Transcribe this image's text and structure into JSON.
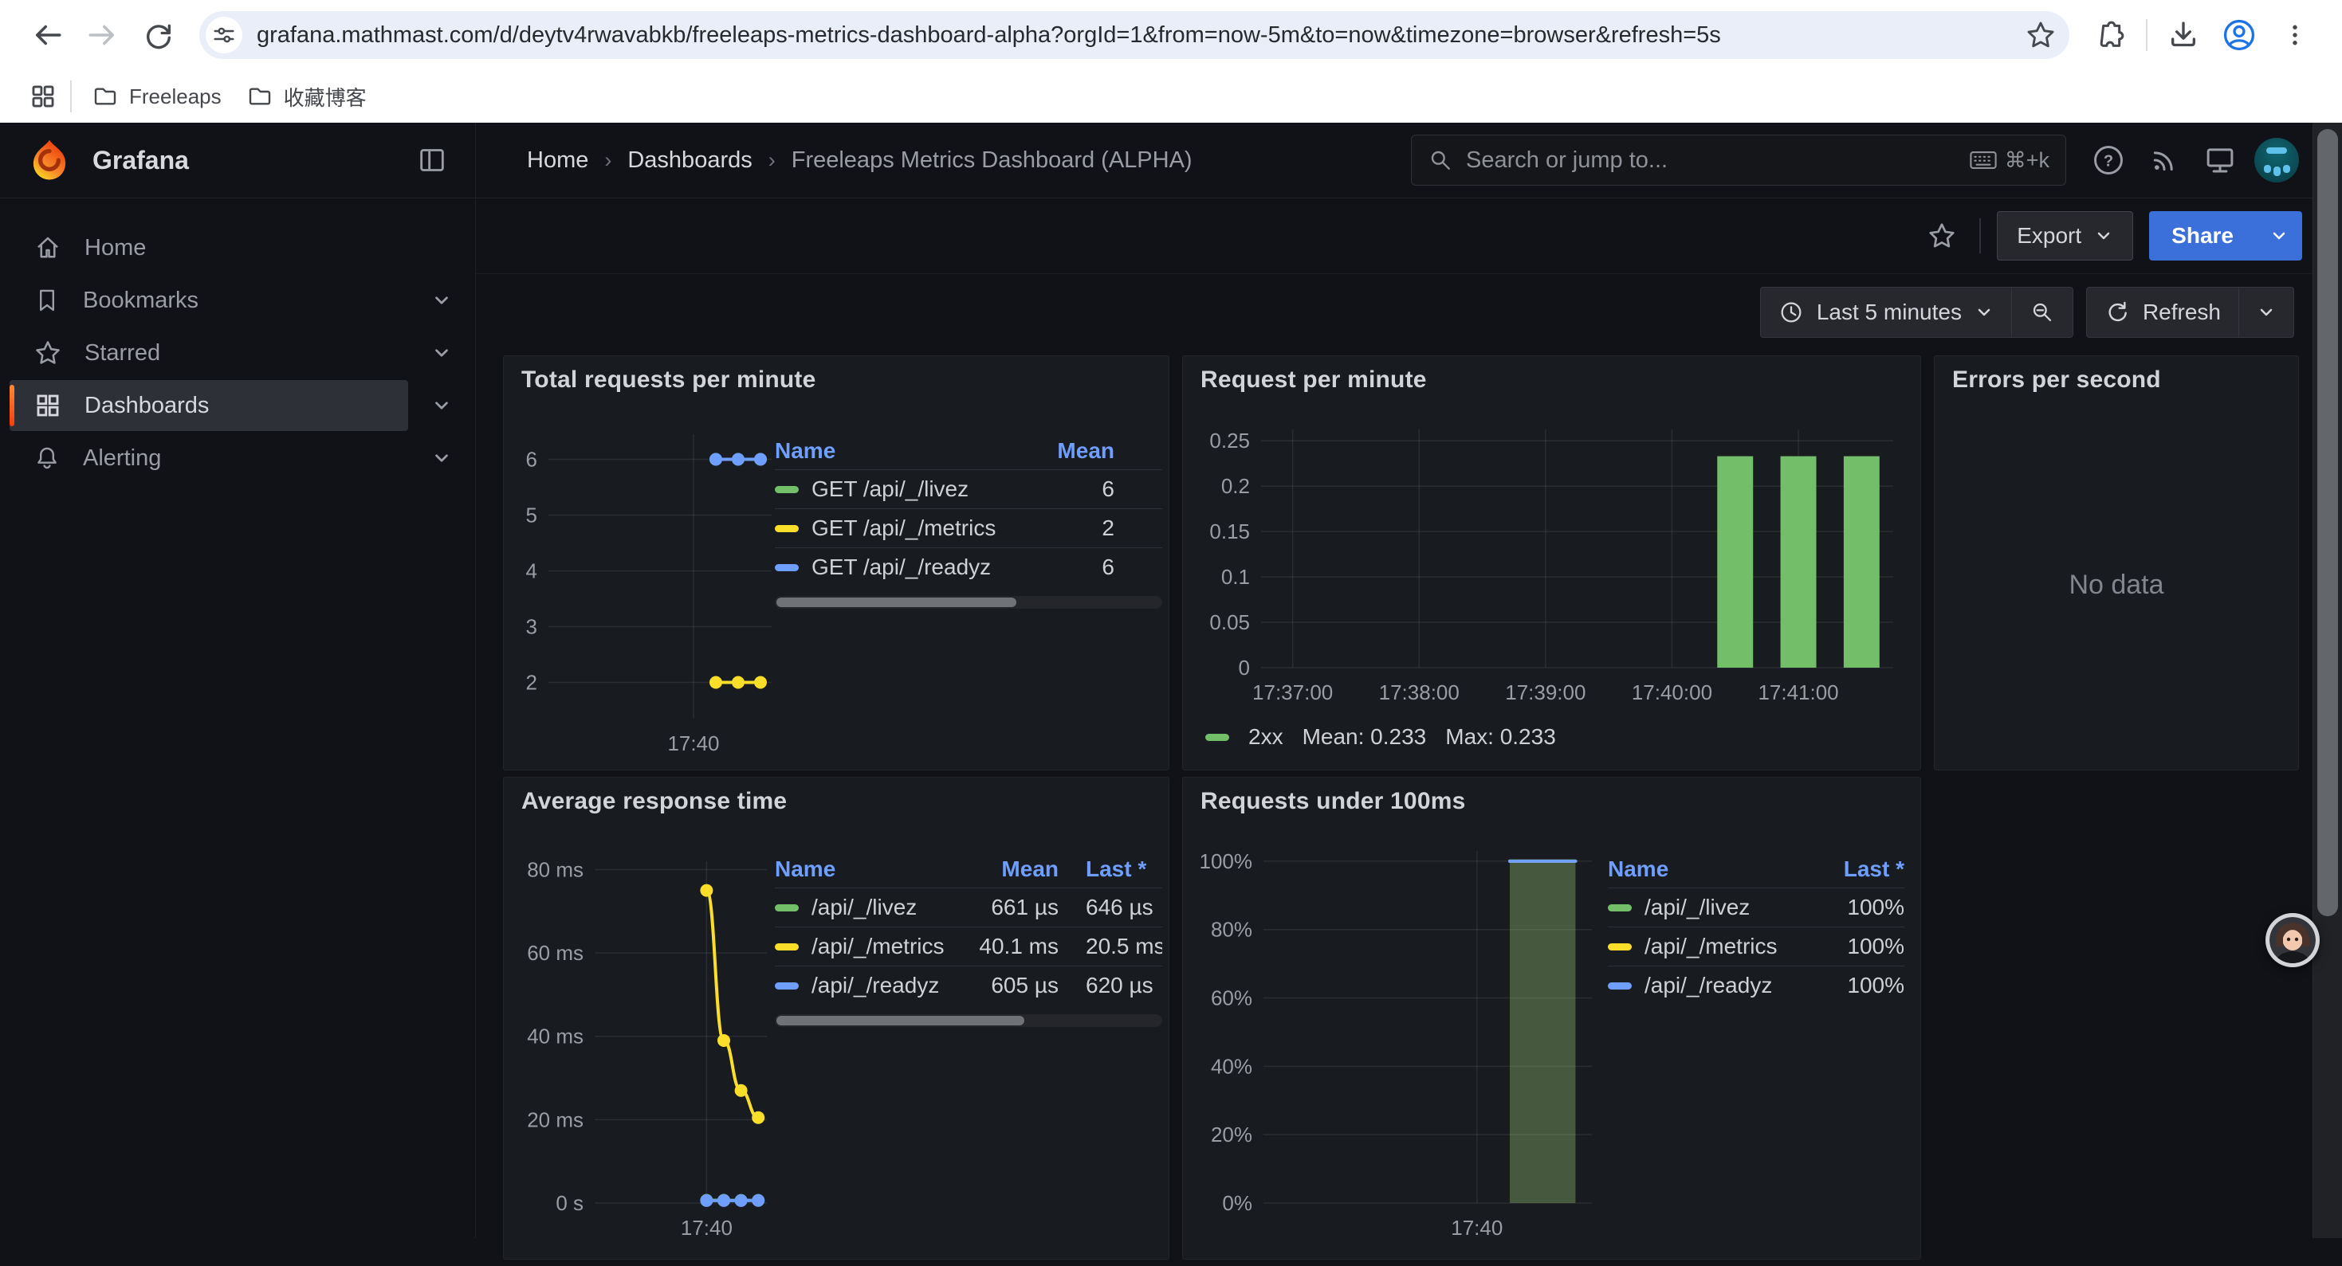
{
  "browser": {
    "url": "grafana.mathmast.com/d/deytv4rwavabkb/freeleaps-metrics-dashboard-alpha?orgId=1&from=now-5m&to=now&timezone=browser&refresh=5s",
    "bookmarks": [
      {
        "label": "Freeleaps"
      },
      {
        "label": "收藏博客"
      }
    ]
  },
  "sidebar": {
    "brand": "Grafana",
    "items": [
      {
        "label": "Home",
        "icon": "home-icon",
        "expandable": false,
        "active": false
      },
      {
        "label": "Bookmarks",
        "icon": "bookmark-icon",
        "expandable": true,
        "active": false
      },
      {
        "label": "Starred",
        "icon": "star-icon",
        "expandable": true,
        "active": false
      },
      {
        "label": "Dashboards",
        "icon": "apps-grid-icon",
        "expandable": true,
        "active": true
      },
      {
        "label": "Alerting",
        "icon": "bell-icon",
        "expandable": true,
        "active": false
      }
    ]
  },
  "header": {
    "breadcrumb": [
      {
        "label": "Home"
      },
      {
        "label": "Dashboards"
      },
      {
        "label": "Freeleaps Metrics Dashboard (ALPHA)"
      }
    ],
    "search_placeholder": "Search or jump to...",
    "search_shortcut": "⌘+k"
  },
  "toolbar": {
    "export_label": "Export",
    "share_label": "Share"
  },
  "timebar": {
    "range_label": "Last 5 minutes",
    "refresh_label": "Refresh"
  },
  "panels": {
    "p1": {
      "title": "Total requests per minute",
      "legend": {
        "columns": [
          "Name",
          "Mean"
        ],
        "rows": [
          {
            "color": "#73BF69",
            "name": "GET /api/_/livez",
            "mean": "6"
          },
          {
            "color": "#FADE2A",
            "name": "GET /api/_/metrics",
            "mean": "2"
          },
          {
            "color": "#6E9FFF",
            "name": "GET /api/_/readyz",
            "mean": "6"
          }
        ]
      }
    },
    "p2": {
      "title": "Request per minute",
      "legend_line": {
        "series": "2xx",
        "mean": "Mean: 0.233",
        "max": "Max: 0.233"
      }
    },
    "p3": {
      "title": "Errors per second",
      "no_data": "No data"
    },
    "p4": {
      "title": "Average response time",
      "legend": {
        "columns": [
          "Name",
          "Mean",
          "Last *"
        ],
        "rows": [
          {
            "color": "#73BF69",
            "name": "/api/_/livez",
            "mean": "661 µs",
            "last": "646 µs"
          },
          {
            "color": "#FADE2A",
            "name": "/api/_/metrics",
            "mean": "40.1 ms",
            "last": "20.5 ms"
          },
          {
            "color": "#6E9FFF",
            "name": "/api/_/readyz",
            "mean": "605 µs",
            "last": "620 µs"
          }
        ]
      }
    },
    "p5": {
      "title": "Requests under 100ms",
      "legend": {
        "columns": [
          "Name",
          "Last *"
        ],
        "rows": [
          {
            "color": "#73BF69",
            "name": "/api/_/livez",
            "last": "100%"
          },
          {
            "color": "#FADE2A",
            "name": "/api/_/metrics",
            "last": "100%"
          },
          {
            "color": "#6E9FFF",
            "name": "/api/_/readyz",
            "last": "100%"
          }
        ]
      }
    }
  },
  "chart_data": [
    {
      "id": "total-requests-per-minute",
      "type": "line",
      "title": "Total requests per minute",
      "x_range": [
        "17:36:45",
        "17:41:45"
      ],
      "y_range": [
        1.35,
        6.45
      ],
      "x_ticks": [
        "17:40:00"
      ],
      "x_tick_labels": [
        "17:40"
      ],
      "y_ticks": [
        2,
        3,
        4,
        5,
        6
      ],
      "y_tick_labels": [
        "2",
        "3",
        "4",
        "5",
        "6"
      ],
      "grid": true,
      "smooth": false,
      "show_points": true,
      "legend_position": "right-table",
      "layout": {
        "margin": {
          "l": 46,
          "r": 6,
          "t": 12,
          "b": 56
        }
      },
      "series": [
        {
          "name": "GET /api/_/livez",
          "color": "#73BF69",
          "mean": 6,
          "points": [
            [
              "17:40:30",
              6
            ],
            [
              "17:41:00",
              6
            ],
            [
              "17:41:30",
              6
            ]
          ]
        },
        {
          "name": "GET /api/_/metrics",
          "color": "#FADE2A",
          "mean": 2,
          "points": [
            [
              "17:40:30",
              2
            ],
            [
              "17:41:00",
              2
            ],
            [
              "17:41:30",
              2
            ]
          ]
        },
        {
          "name": "GET /api/_/readyz",
          "color": "#6E9FFF",
          "mean": 6,
          "points": [
            [
              "17:40:30",
              6
            ],
            [
              "17:41:00",
              6
            ],
            [
              "17:41:30",
              6
            ]
          ]
        }
      ]
    },
    {
      "id": "request-per-minute",
      "type": "bar",
      "title": "Request per minute",
      "x_range": [
        "17:36:45",
        "17:41:45"
      ],
      "y_range": [
        0,
        0.2625
      ],
      "x_ticks": [
        "17:37:00",
        "17:38:00",
        "17:39:00",
        "17:40:00",
        "17:41:00"
      ],
      "x_tick_labels": [
        "17:37:00",
        "17:38:00",
        "17:39:00",
        "17:40:00",
        "17:41:00"
      ],
      "y_ticks": [
        0,
        0.05,
        0.1,
        0.15,
        0.2,
        0.25
      ],
      "y_tick_labels": [
        "0",
        "0.05",
        "0.1",
        "0.15",
        "0.2",
        "0.25"
      ],
      "grid": true,
      "bar_width_sec": 17,
      "legend_position": "bottom",
      "layout": {
        "margin": {
          "l": 84,
          "r": 10,
          "t": 8,
          "b": 58
        }
      },
      "series": [
        {
          "name": "2xx",
          "color": "#73BF69",
          "mean": 0.233,
          "max": 0.233,
          "points": [
            [
              "17:40:30",
              0.233
            ],
            [
              "17:41:00",
              0.233
            ],
            [
              "17:41:30",
              0.233
            ]
          ]
        }
      ]
    },
    {
      "id": "errors-per-second",
      "type": "none",
      "title": "Errors per second",
      "no_data": "No data"
    },
    {
      "id": "average-response-time",
      "type": "line",
      "title": "Average response time",
      "y_unit": "ms",
      "x_range": [
        "17:36:45",
        "17:41:45"
      ],
      "y_range": [
        0,
        82
      ],
      "x_ticks": [
        "17:40:00"
      ],
      "x_tick_labels": [
        "17:40"
      ],
      "y_ticks": [
        0,
        20,
        40,
        60,
        80
      ],
      "y_tick_labels": [
        "0 s",
        "20 ms",
        "40 ms",
        "60 ms",
        "80 ms"
      ],
      "grid": true,
      "smooth": true,
      "show_points": true,
      "legend_position": "right-table",
      "layout": {
        "margin": {
          "l": 104,
          "r": 12,
          "t": 13,
          "b": 58
        }
      },
      "series": [
        {
          "name": "/api/_/livez",
          "color": "#73BF69",
          "mean": "661 µs",
          "last": "646 µs",
          "points": [
            [
              "17:40:00",
              0.66
            ],
            [
              "17:40:30",
              0.66
            ],
            [
              "17:41:00",
              0.65
            ],
            [
              "17:41:30",
              0.65
            ]
          ]
        },
        {
          "name": "/api/_/readyz",
          "color": "#6E9FFF",
          "mean": "605 µs",
          "last": "620 µs",
          "points": [
            [
              "17:40:00",
              0.6
            ],
            [
              "17:40:30",
              0.6
            ],
            [
              "17:41:00",
              0.6
            ],
            [
              "17:41:30",
              0.62
            ]
          ]
        },
        {
          "name": "/api/_/metrics",
          "color": "#FADE2A",
          "mean": "40.1 ms",
          "last": "20.5 ms",
          "points": [
            [
              "17:40:00",
              75
            ],
            [
              "17:40:30",
              39
            ],
            [
              "17:41:00",
              27
            ],
            [
              "17:41:30",
              20.5
            ]
          ]
        }
      ]
    },
    {
      "id": "requests-under-100ms",
      "type": "area",
      "title": "Requests under 100ms",
      "y_unit": "%",
      "x_range": [
        "17:36:45",
        "17:41:45"
      ],
      "y_range": [
        0,
        103
      ],
      "x_ticks": [
        "17:40:00"
      ],
      "x_tick_labels": [
        "17:40"
      ],
      "y_ticks": [
        0,
        20,
        40,
        60,
        80,
        100
      ],
      "y_tick_labels": [
        "0%",
        "20%",
        "40%",
        "60%",
        "80%",
        "100%"
      ],
      "grid": true,
      "smooth": false,
      "show_points": false,
      "legend_position": "right-table",
      "layout": {
        "margin": {
          "l": 91,
          "r": 12,
          "t": 6,
          "b": 58
        }
      },
      "series": [
        {
          "name": "/api/_/livez",
          "color": "#73BF69",
          "fill": "rgba(115,191,105,0.26)",
          "last": "100%",
          "points": [
            [
              "17:40:30",
              100
            ],
            [
              "17:41:00",
              100
            ],
            [
              "17:41:30",
              100
            ]
          ]
        },
        {
          "name": "/api/_/metrics",
          "color": "#FADE2A",
          "fill": "rgba(250,222,42,0.10)",
          "last": "100%",
          "points": [
            [
              "17:40:30",
              100
            ],
            [
              "17:41:00",
              100
            ],
            [
              "17:41:30",
              100
            ]
          ]
        },
        {
          "name": "/api/_/readyz",
          "color": "#6E9FFF",
          "fill": "rgba(110,159,255,0.07)",
          "last": "100%",
          "points": [
            [
              "17:40:30",
              100
            ],
            [
              "17:41:00",
              100
            ],
            [
              "17:41:30",
              100
            ]
          ]
        }
      ]
    }
  ],
  "colors": {
    "green": "#73BF69",
    "yellow": "#FADE2A",
    "blue": "#6E9FFF",
    "accent_orange": "#FF780A",
    "link_blue": "#6E9FFF",
    "share_blue": "#3B6FD9",
    "panel_bg": "#181B1F",
    "page_bg": "#111217"
  },
  "icons": {
    "back": "arrow-left",
    "forward": "arrow-right",
    "reload": "circular-arrow",
    "site-info": "sliders",
    "bookmark-star": "star-outline",
    "extensions": "puzzle",
    "download": "arrow-into-tray",
    "profile": "person-circle",
    "kebab": "three-dots",
    "apps-grid": "grid-2x2",
    "folder": "folder",
    "grafana-logo": "orange-flame",
    "dock-toggle": "panel-left",
    "home": "house",
    "bookmark": "bookmark",
    "star": "star",
    "bell": "bell",
    "chevron-down": "v",
    "search": "magnifier",
    "keyboard": "keyboard",
    "help": "question-circle",
    "news": "rss-arcs",
    "monitor": "display",
    "clock": "clock",
    "zoom-out": "magnifier-minus",
    "refresh": "sync-arrows"
  }
}
